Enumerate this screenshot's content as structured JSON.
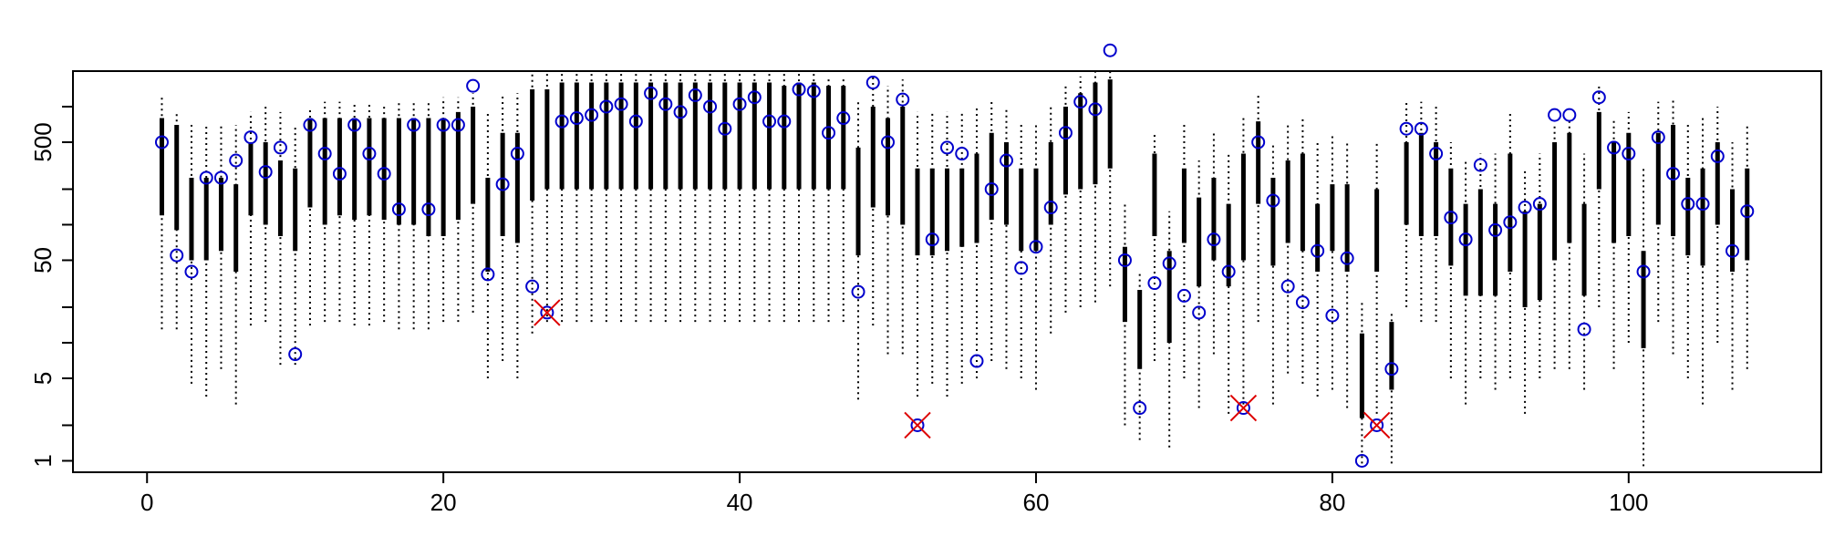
{
  "chart_data": {
    "type": "interval",
    "title": "",
    "xlabel": "",
    "ylabel": "",
    "xlim": [
      -5,
      113
    ],
    "ylim": [
      0.8,
      2000
    ],
    "yscale": "log",
    "grid": false,
    "legend": "none",
    "x_ticks": [
      0,
      20,
      40,
      60,
      80,
      100
    ],
    "x_tick_labels": [
      "0",
      "20",
      "40",
      "60",
      "80",
      "100"
    ],
    "y_ticks": [
      1,
      5,
      50,
      500
    ],
    "y_tick_labels": [
      "1",
      "5",
      "50",
      "500"
    ],
    "y_minor_ticks": [
      2,
      20,
      200,
      10,
      100,
      1000
    ],
    "colors": {
      "whisker": "#000000",
      "interquartile": "#000000",
      "observed_marker": "#0000cc",
      "flag_marker": "#dd0000"
    },
    "intervals": [
      [
        1,
        13,
        1200,
        120,
        800
      ],
      [
        2,
        13,
        900,
        90,
        700
      ],
      [
        3,
        4.5,
        700,
        50,
        250
      ],
      [
        4,
        3.5,
        700,
        50,
        250
      ],
      [
        5,
        6,
        700,
        60,
        250
      ],
      [
        6,
        3,
        700,
        40,
        220
      ],
      [
        7,
        14,
        900,
        120,
        500
      ],
      [
        8,
        15,
        1000,
        100,
        500
      ],
      [
        9,
        6.5,
        900,
        80,
        350
      ],
      [
        10,
        6.5,
        700,
        60,
        300
      ],
      [
        11,
        14,
        1000,
        140,
        800
      ],
      [
        12,
        15,
        1100,
        100,
        800
      ],
      [
        13,
        15,
        1100,
        120,
        800
      ],
      [
        14,
        14,
        1100,
        110,
        800
      ],
      [
        15,
        14,
        1100,
        120,
        800
      ],
      [
        16,
        15,
        1000,
        110,
        800
      ],
      [
        17,
        13,
        1100,
        100,
        800
      ],
      [
        18,
        13,
        1100,
        100,
        800
      ],
      [
        19,
        13,
        1100,
        80,
        800
      ],
      [
        20,
        15,
        1200,
        80,
        800
      ],
      [
        21,
        15,
        1200,
        110,
        900
      ],
      [
        22,
        18,
        1300,
        150,
        1000
      ],
      [
        23,
        5,
        900,
        40,
        250
      ],
      [
        24,
        7,
        1300,
        80,
        600
      ],
      [
        25,
        5,
        1300,
        70,
        600
      ],
      [
        26,
        12,
        1900,
        160,
        1400
      ],
      [
        27,
        15,
        2000,
        200,
        1400
      ],
      [
        28,
        15,
        2000,
        200,
        1600
      ],
      [
        29,
        15,
        2000,
        200,
        1600
      ],
      [
        30,
        15,
        2000,
        200,
        1600
      ],
      [
        31,
        15,
        1900,
        200,
        1600
      ],
      [
        32,
        15,
        1900,
        200,
        1600
      ],
      [
        33,
        15,
        1900,
        200,
        1600
      ],
      [
        34,
        15,
        2000,
        200,
        1600
      ],
      [
        35,
        15,
        2000,
        200,
        1600
      ],
      [
        36,
        15,
        1900,
        200,
        1600
      ],
      [
        37,
        15,
        1900,
        200,
        1600
      ],
      [
        38,
        15,
        1900,
        200,
        1600
      ],
      [
        39,
        15,
        1900,
        200,
        1600
      ],
      [
        40,
        15,
        1900,
        200,
        1600
      ],
      [
        41,
        15,
        1900,
        200,
        1600
      ],
      [
        42,
        15,
        1900,
        200,
        1600
      ],
      [
        43,
        15,
        1900,
        200,
        1500
      ],
      [
        44,
        15,
        1900,
        200,
        1600
      ],
      [
        45,
        15,
        1900,
        200,
        1600
      ],
      [
        46,
        15,
        1800,
        200,
        1500
      ],
      [
        47,
        15,
        1700,
        200,
        1500
      ],
      [
        48,
        3.3,
        1100,
        55,
        450
      ],
      [
        49,
        14,
        1800,
        140,
        1000
      ],
      [
        50,
        8,
        1500,
        120,
        800
      ],
      [
        51,
        8,
        1700,
        100,
        1000
      ],
      [
        52,
        3.5,
        900,
        55,
        300
      ],
      [
        53,
        4.5,
        900,
        55,
        300
      ],
      [
        54,
        3.5,
        900,
        60,
        300
      ],
      [
        55,
        4.5,
        900,
        65,
        300
      ],
      [
        56,
        5,
        1000,
        70,
        400
      ],
      [
        57,
        7,
        1100,
        110,
        600
      ],
      [
        58,
        6,
        1000,
        100,
        500
      ],
      [
        59,
        5,
        700,
        60,
        300
      ],
      [
        60,
        4,
        700,
        60,
        300
      ],
      [
        61,
        12,
        1000,
        100,
        500
      ],
      [
        62,
        18,
        1500,
        180,
        1000
      ],
      [
        63,
        20,
        1800,
        200,
        1300
      ],
      [
        64,
        22,
        2000,
        220,
        1600
      ],
      [
        65,
        30,
        2000,
        300,
        1700
      ],
      [
        66,
        2,
        150,
        15,
        65
      ],
      [
        67,
        1.5,
        40,
        6,
        28
      ],
      [
        68,
        7,
        600,
        80,
        400
      ],
      [
        69,
        1.3,
        130,
        10,
        60
      ],
      [
        70,
        5,
        700,
        70,
        300
      ],
      [
        71,
        2.8,
        350,
        30,
        170
      ],
      [
        72,
        8,
        600,
        50,
        250
      ],
      [
        73,
        2.5,
        400,
        30,
        150
      ],
      [
        74,
        3,
        800,
        50,
        400
      ],
      [
        75,
        15,
        1300,
        150,
        750
      ],
      [
        76,
        3,
        500,
        45,
        250
      ],
      [
        77,
        5.5,
        700,
        70,
        350
      ],
      [
        78,
        4.5,
        800,
        60,
        400
      ],
      [
        79,
        3.5,
        500,
        40,
        150
      ],
      [
        80,
        4,
        600,
        60,
        220
      ],
      [
        81,
        2.8,
        500,
        40,
        220
      ],
      [
        82,
        0.95,
        23,
        2.3,
        12
      ],
      [
        83,
        2.5,
        500,
        40,
        200
      ],
      [
        84,
        0.95,
        18,
        4,
        15
      ],
      [
        85,
        20,
        1100,
        100,
        500
      ],
      [
        86,
        15,
        1100,
        80,
        600
      ],
      [
        87,
        15,
        1000,
        80,
        500
      ],
      [
        88,
        5,
        500,
        45,
        300
      ],
      [
        89,
        3,
        350,
        25,
        150
      ],
      [
        90,
        5,
        400,
        25,
        200
      ],
      [
        91,
        4,
        400,
        25,
        150
      ],
      [
        92,
        5,
        900,
        40,
        400
      ],
      [
        93,
        2.5,
        300,
        20,
        130
      ],
      [
        94,
        5,
        400,
        23,
        150
      ],
      [
        95,
        6,
        700,
        50,
        500
      ],
      [
        96,
        6,
        800,
        70,
        600
      ],
      [
        97,
        4,
        400,
        25,
        150
      ],
      [
        98,
        20,
        1500,
        200,
        900
      ],
      [
        99,
        6,
        800,
        70,
        500
      ],
      [
        100,
        10,
        900,
        80,
        600
      ],
      [
        101,
        0.9,
        300,
        9,
        60
      ],
      [
        102,
        15,
        1100,
        100,
        600
      ],
      [
        103,
        8,
        1200,
        80,
        700
      ],
      [
        104,
        5,
        700,
        55,
        250
      ],
      [
        105,
        3,
        800,
        45,
        300
      ],
      [
        106,
        10,
        1000,
        100,
        500
      ],
      [
        107,
        4,
        500,
        40,
        200
      ],
      [
        108,
        6,
        700,
        50,
        300
      ]
    ],
    "observed": [
      [
        1,
        500
      ],
      [
        2,
        55
      ],
      [
        3,
        40
      ],
      [
        4,
        250
      ],
      [
        5,
        250
      ],
      [
        6,
        350
      ],
      [
        7,
        550
      ],
      [
        8,
        280
      ],
      [
        9,
        450
      ],
      [
        10,
        8
      ],
      [
        11,
        700
      ],
      [
        12,
        400
      ],
      [
        13,
        270
      ],
      [
        14,
        700
      ],
      [
        15,
        400
      ],
      [
        16,
        270
      ],
      [
        17,
        135
      ],
      [
        18,
        700
      ],
      [
        19,
        135
      ],
      [
        20,
        700
      ],
      [
        21,
        700
      ],
      [
        22,
        1500
      ],
      [
        23,
        38
      ],
      [
        24,
        220
      ],
      [
        25,
        400
      ],
      [
        26,
        30
      ],
      [
        27,
        18
      ],
      [
        28,
        750
      ],
      [
        29,
        800
      ],
      [
        30,
        850
      ],
      [
        31,
        1000
      ],
      [
        32,
        1050
      ],
      [
        33,
        750
      ],
      [
        34,
        1300
      ],
      [
        35,
        1050
      ],
      [
        36,
        900
      ],
      [
        37,
        1250
      ],
      [
        38,
        1000
      ],
      [
        39,
        650
      ],
      [
        40,
        1050
      ],
      [
        41,
        1200
      ],
      [
        42,
        750
      ],
      [
        43,
        750
      ],
      [
        44,
        1400
      ],
      [
        45,
        1350
      ],
      [
        46,
        600
      ],
      [
        47,
        800
      ],
      [
        48,
        27
      ],
      [
        49,
        1600
      ],
      [
        50,
        500
      ],
      [
        51,
        1150
      ],
      [
        52,
        2
      ],
      [
        53,
        75
      ],
      [
        54,
        450
      ],
      [
        55,
        400
      ],
      [
        56,
        7
      ],
      [
        57,
        200
      ],
      [
        58,
        350
      ],
      [
        59,
        43
      ],
      [
        60,
        65
      ],
      [
        61,
        140
      ],
      [
        62,
        600
      ],
      [
        63,
        1100
      ],
      [
        64,
        950
      ],
      [
        65,
        3000
      ],
      [
        66,
        50
      ],
      [
        67,
        2.8
      ],
      [
        68,
        32
      ],
      [
        69,
        47
      ],
      [
        70,
        25
      ],
      [
        71,
        18
      ],
      [
        72,
        75
      ],
      [
        73,
        40
      ],
      [
        74,
        2.8
      ],
      [
        75,
        500
      ],
      [
        76,
        160
      ],
      [
        77,
        30
      ],
      [
        78,
        22
      ],
      [
        79,
        60
      ],
      [
        80,
        17
      ],
      [
        81,
        52
      ],
      [
        82,
        1
      ],
      [
        83,
        2
      ],
      [
        84,
        6
      ],
      [
        85,
        650
      ],
      [
        86,
        650
      ],
      [
        87,
        400
      ],
      [
        88,
        115
      ],
      [
        89,
        75
      ],
      [
        90,
        320
      ],
      [
        91,
        90
      ],
      [
        92,
        105
      ],
      [
        93,
        140
      ],
      [
        94,
        150
      ],
      [
        95,
        850
      ],
      [
        96,
        850
      ],
      [
        97,
        13
      ],
      [
        98,
        1200
      ],
      [
        99,
        450
      ],
      [
        100,
        400
      ],
      [
        101,
        40
      ],
      [
        102,
        550
      ],
      [
        103,
        270
      ],
      [
        104,
        150
      ],
      [
        105,
        150
      ],
      [
        106,
        380
      ],
      [
        107,
        60
      ],
      [
        108,
        130
      ]
    ],
    "flagged": [
      [
        27,
        18
      ],
      [
        52,
        2
      ],
      [
        74,
        2.8
      ],
      [
        83,
        2
      ]
    ]
  }
}
